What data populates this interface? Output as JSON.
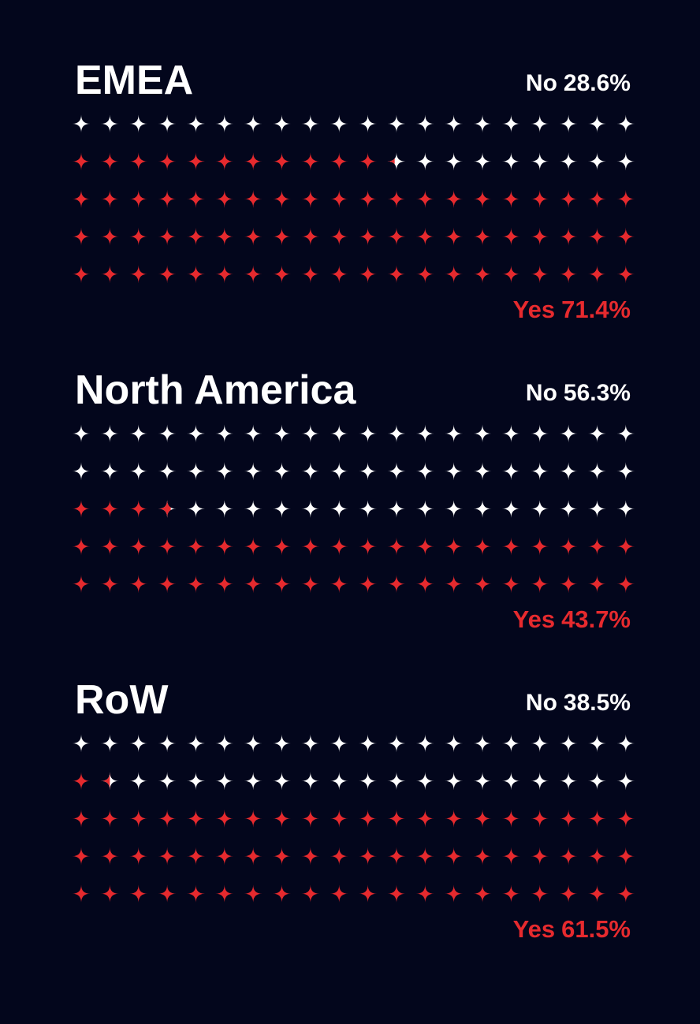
{
  "colors": {
    "background": "#03061c",
    "no": "#ffffff",
    "yes": "#e62a2e"
  },
  "chart_data": [
    {
      "type": "waffle",
      "title": "EMEA",
      "rows": 5,
      "cols": 20,
      "series": [
        {
          "name": "No",
          "value": 28.6,
          "color": "#ffffff",
          "label_word": "No",
          "label_value": "28.6%"
        },
        {
          "name": "Yes",
          "value": 71.4,
          "color": "#e62a2e",
          "label_word": "Yes",
          "label_value": "71.4%"
        }
      ]
    },
    {
      "type": "waffle",
      "title": "North America",
      "rows": 5,
      "cols": 20,
      "series": [
        {
          "name": "No",
          "value": 56.3,
          "color": "#ffffff",
          "label_word": "No",
          "label_value": "56.3%"
        },
        {
          "name": "Yes",
          "value": 43.7,
          "color": "#e62a2e",
          "label_word": "Yes",
          "label_value": "43.7%"
        }
      ]
    },
    {
      "type": "waffle",
      "title": "RoW",
      "rows": 5,
      "cols": 20,
      "series": [
        {
          "name": "No",
          "value": 38.5,
          "color": "#ffffff",
          "label_word": "No",
          "label_value": "38.5%"
        },
        {
          "name": "Yes",
          "value": 61.5,
          "color": "#e62a2e",
          "label_word": "Yes",
          "label_value": "61.5%"
        }
      ]
    }
  ]
}
